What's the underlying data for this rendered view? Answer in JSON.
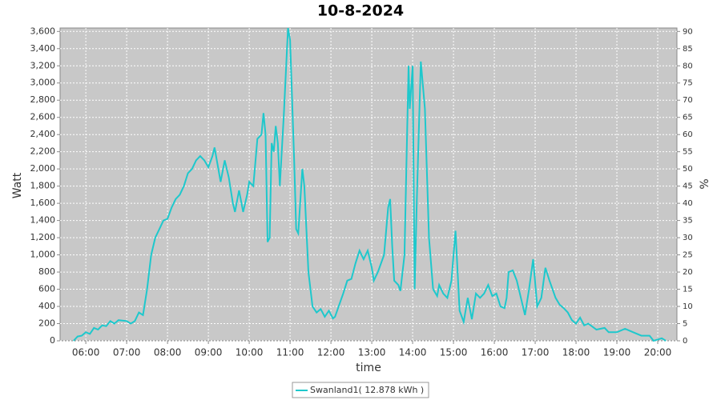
{
  "chart_data": {
    "type": "line",
    "title": "10-8-2024",
    "x_label": "time",
    "y_label": "Watt",
    "y2_label": "%",
    "x": [
      5.7,
      5.8,
      5.9,
      6.0,
      6.1,
      6.2,
      6.3,
      6.4,
      6.5,
      6.6,
      6.7,
      6.8,
      7.0,
      7.1,
      7.2,
      7.3,
      7.4,
      7.5,
      7.6,
      7.7,
      7.8,
      7.9,
      8.0,
      8.1,
      8.2,
      8.3,
      8.4,
      8.5,
      8.6,
      8.7,
      8.8,
      8.9,
      9.0,
      9.1,
      9.15,
      9.3,
      9.4,
      9.5,
      9.6,
      9.65,
      9.75,
      9.85,
      9.95,
      10.0,
      10.1,
      10.2,
      10.3,
      10.35,
      10.4,
      10.45,
      10.5,
      10.55,
      10.6,
      10.65,
      10.7,
      10.75,
      10.85,
      10.95,
      11.0,
      11.1,
      11.15,
      11.2,
      11.3,
      11.35,
      11.45,
      11.55,
      11.65,
      11.75,
      11.85,
      11.95,
      12.05,
      12.1,
      12.3,
      12.4,
      12.5,
      12.6,
      12.7,
      12.8,
      12.9,
      13.0,
      13.05,
      13.15,
      13.3,
      13.4,
      13.45,
      13.5,
      13.55,
      13.65,
      13.7,
      13.8,
      13.9,
      13.93,
      14.0,
      14.05,
      14.1,
      14.2,
      14.3,
      14.4,
      14.5,
      14.6,
      14.65,
      14.75,
      14.85,
      14.95,
      15.05,
      15.15,
      15.25,
      15.35,
      15.45,
      15.55,
      15.65,
      15.75,
      15.85,
      15.95,
      16.05,
      16.15,
      16.25,
      16.3,
      16.35,
      16.45,
      16.55,
      16.65,
      16.75,
      16.85,
      16.95,
      17.05,
      17.15,
      17.25,
      17.35,
      17.5,
      17.6,
      17.7,
      17.8,
      17.9,
      18.0,
      18.1,
      18.2,
      18.3,
      18.5,
      18.7,
      18.8,
      19.0,
      19.2,
      19.4,
      19.6,
      19.8,
      19.9,
      20.1,
      20.2
    ],
    "series": [
      {
        "name": "Swanland1( 12.878 kWh )",
        "color": "#1ec8cc",
        "values": [
          0,
          50,
          60,
          100,
          80,
          150,
          130,
          180,
          170,
          230,
          200,
          240,
          230,
          200,
          230,
          330,
          300,
          600,
          1000,
          1200,
          1300,
          1400,
          1420,
          1550,
          1650,
          1700,
          1800,
          1950,
          2000,
          2100,
          2150,
          2100,
          2020,
          2150,
          2250,
          1850,
          2100,
          1900,
          1600,
          1500,
          1750,
          1500,
          1700,
          1850,
          1800,
          2350,
          2400,
          2650,
          2400,
          1150,
          1200,
          2300,
          2200,
          2500,
          2300,
          1800,
          2650,
          3640,
          3500,
          2100,
          1300,
          1250,
          2000,
          1800,
          800,
          400,
          330,
          370,
          280,
          350,
          260,
          280,
          550,
          700,
          720,
          900,
          1050,
          950,
          1050,
          850,
          700,
          800,
          1000,
          1550,
          1650,
          1100,
          700,
          650,
          580,
          1000,
          3200,
          2700,
          3200,
          600,
          1600,
          3250,
          2700,
          1200,
          600,
          520,
          650,
          550,
          500,
          700,
          1280,
          350,
          220,
          500,
          250,
          550,
          500,
          550,
          650,
          520,
          550,
          400,
          380,
          500,
          800,
          820,
          700,
          500,
          300,
          600,
          950,
          400,
          500,
          850,
          700,
          500,
          420,
          380,
          330,
          240,
          200,
          270,
          180,
          200,
          130,
          150,
          100,
          100,
          140,
          100,
          60,
          60,
          0,
          30,
          0
        ]
      }
    ],
    "xlim": [
      5.37,
      20.47
    ],
    "xticks": [
      {
        "value": 6,
        "label": "06:00"
      },
      {
        "value": 7,
        "label": "07:00"
      },
      {
        "value": 8,
        "label": "08:00"
      },
      {
        "value": 9,
        "label": "09:00"
      },
      {
        "value": 10,
        "label": "10:00"
      },
      {
        "value": 11,
        "label": "11:00"
      },
      {
        "value": 12,
        "label": "12:00"
      },
      {
        "value": 13,
        "label": "13:00"
      },
      {
        "value": 14,
        "label": "14:00"
      },
      {
        "value": 15,
        "label": "15:00"
      },
      {
        "value": 16,
        "label": "16:00"
      },
      {
        "value": 17,
        "label": "17:00"
      },
      {
        "value": 18,
        "label": "18:00"
      },
      {
        "value": 19,
        "label": "19:00"
      },
      {
        "value": 20,
        "label": "20:00"
      }
    ],
    "ylim": [
      0,
      3640
    ],
    "yticks": [
      0,
      200,
      400,
      600,
      800,
      {
        "value": 1000,
        "label": "1,000"
      },
      {
        "value": 1200,
        "label": "1,200"
      },
      {
        "value": 1400,
        "label": "1,400"
      },
      {
        "value": 1600,
        "label": "1,600"
      },
      {
        "value": 1800,
        "label": "1,800"
      },
      {
        "value": 2000,
        "label": "2,000"
      },
      {
        "value": 2200,
        "label": "2,200"
      },
      {
        "value": 2400,
        "label": "2,400"
      },
      {
        "value": 2600,
        "label": "2,600"
      },
      {
        "value": 2800,
        "label": "2,800"
      },
      {
        "value": 3000,
        "label": "3,000"
      },
      {
        "value": 3200,
        "label": "3,200"
      },
      {
        "value": 3400,
        "label": "3,400"
      },
      {
        "value": 3600,
        "label": "3,600"
      }
    ],
    "y2lim": [
      0,
      91
    ],
    "y2ticks": [
      0,
      5,
      10,
      15,
      20,
      25,
      30,
      35,
      40,
      45,
      50,
      55,
      60,
      65,
      70,
      75,
      80,
      85,
      90
    ],
    "grid": true
  }
}
